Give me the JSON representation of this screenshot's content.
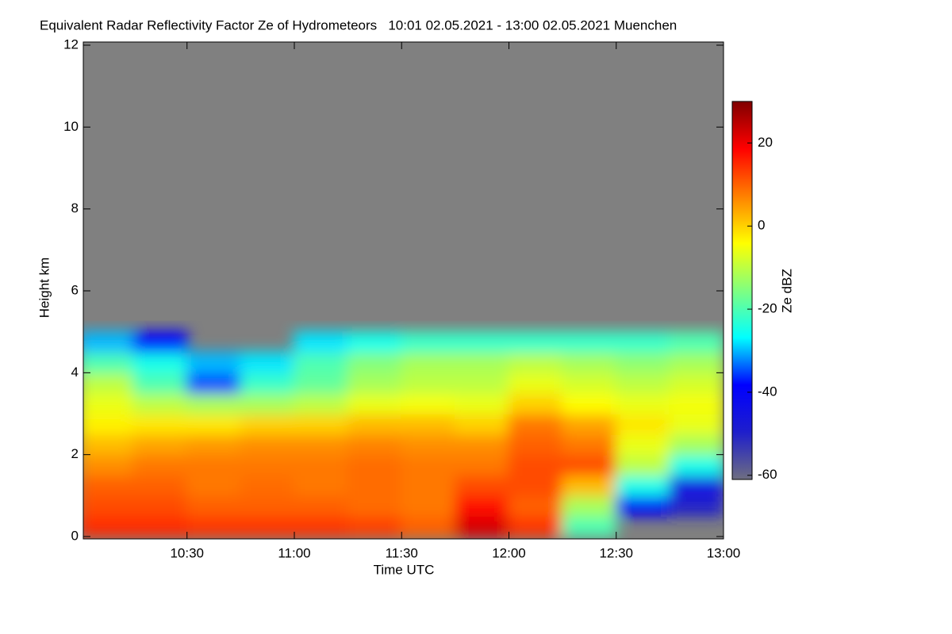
{
  "chart_data": {
    "type": "heatmap",
    "title": "Equivalent Radar Reflectivity Factor Ze of Hydrometeors   10:01 02.05.2021 - 13:00 02.05.2021 Muenchen",
    "xlabel": "Time UTC",
    "ylabel": "Height km",
    "colorbar_label": "Ze dBZ",
    "xlim": [
      10.0167,
      13.0
    ],
    "xticks": [
      {
        "value": 10.5,
        "label": "10:30"
      },
      {
        "value": 11.0,
        "label": "11:00"
      },
      {
        "value": 11.5,
        "label": "11:30"
      },
      {
        "value": 12.0,
        "label": "12:00"
      },
      {
        "value": 12.5,
        "label": "12:30"
      },
      {
        "value": 13.0,
        "label": "13:00"
      }
    ],
    "ylim": [
      0,
      12
    ],
    "yticks": [
      0,
      2,
      4,
      6,
      8,
      10,
      12
    ],
    "zlim": [
      -61,
      30
    ],
    "zticks": [
      20,
      0,
      -20,
      -40,
      -60
    ],
    "colorscale": [
      "#6e6e80",
      "#1e1ecc",
      "#0000ff",
      "#00ffff",
      "#80ff80",
      "#ffff00",
      "#ff8000",
      "#ff0000",
      "#800000"
    ],
    "missing_color": "#808080",
    "x": [
      10.125,
      10.375,
      10.625,
      10.875,
      11.125,
      11.375,
      11.625,
      11.875,
      12.125,
      12.375,
      12.625,
      12.875
    ],
    "y": [
      0.25,
      0.75,
      1.25,
      1.75,
      2.25,
      2.75,
      3.25,
      3.75,
      4.25,
      4.75
    ],
    "z": [
      [
        15,
        15,
        14,
        14,
        14,
        13,
        10,
        22,
        14,
        -20,
        null,
        null
      ],
      [
        12,
        12,
        10,
        10,
        10,
        9,
        8,
        18,
        10,
        -12,
        -40,
        -50
      ],
      [
        10,
        10,
        8,
        9,
        8,
        9,
        8,
        12,
        12,
        2,
        -25,
        -45
      ],
      [
        6,
        8,
        8,
        8,
        8,
        9,
        8,
        8,
        12,
        12,
        -10,
        -25
      ],
      [
        2,
        4,
        5,
        6,
        6,
        7,
        6,
        6,
        10,
        8,
        -6,
        -12
      ],
      [
        -3,
        -2,
        -2,
        0,
        0,
        2,
        2,
        0,
        8,
        4,
        -2,
        -6
      ],
      [
        -6,
        -10,
        -12,
        -12,
        -10,
        -6,
        -5,
        -6,
        0,
        -4,
        -6,
        -5
      ],
      [
        -10,
        -20,
        -35,
        -22,
        -18,
        -12,
        -10,
        -10,
        -6,
        -8,
        -10,
        -8
      ],
      [
        -20,
        -25,
        -30,
        -28,
        -20,
        -15,
        -12,
        -12,
        -10,
        -12,
        -14,
        -12
      ],
      [
        -30,
        -38,
        null,
        null,
        -28,
        -25,
        -22,
        -22,
        -22,
        -22,
        -22,
        -20
      ]
    ]
  }
}
